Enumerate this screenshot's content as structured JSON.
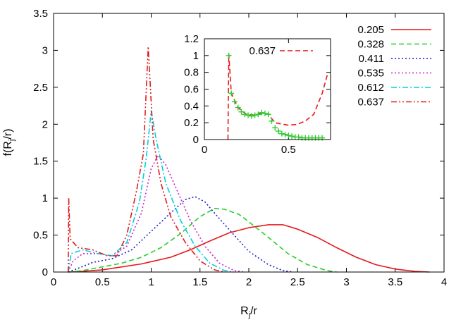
{
  "chart_data": [
    {
      "id": "main",
      "type": "line",
      "title": "",
      "xlabel": {
        "base": "R",
        "sub": "j",
        "rest": "/r"
      },
      "ylabel": {
        "pre": "f(R",
        "sub": "j",
        "rest": "/r)"
      },
      "xlim": [
        0,
        4
      ],
      "ylim": [
        0,
        3.5
      ],
      "xticks": [
        0,
        0.5,
        1,
        1.5,
        2,
        2.5,
        3,
        3.5,
        4
      ],
      "xtick_labels": [
        "0",
        "0.5",
        "1",
        "1.5",
        "2",
        "2.5",
        "3",
        "3.5",
        "4"
      ],
      "yticks": [
        0,
        0.5,
        1,
        1.5,
        2,
        2.5,
        3,
        3.5
      ],
      "ytick_labels": [
        "0",
        "0.5",
        "1",
        "1.5",
        "2",
        "2.5",
        "3",
        "3.5"
      ],
      "grid": false,
      "legend_position": "top-right",
      "series": [
        {
          "name": "0.205",
          "color": "#e41a1c",
          "dash": "solid",
          "points": [
            [
              0.15,
              0
            ],
            [
              0.3,
              0.01
            ],
            [
              0.5,
              0.03
            ],
            [
              0.7,
              0.07
            ],
            [
              0.9,
              0.11
            ],
            [
              1.0,
              0.14
            ],
            [
              1.2,
              0.2
            ],
            [
              1.4,
              0.3
            ],
            [
              1.6,
              0.42
            ],
            [
              1.8,
              0.53
            ],
            [
              2.0,
              0.6
            ],
            [
              2.2,
              0.64
            ],
            [
              2.35,
              0.64
            ],
            [
              2.5,
              0.58
            ],
            [
              2.7,
              0.47
            ],
            [
              2.9,
              0.33
            ],
            [
              3.1,
              0.2
            ],
            [
              3.3,
              0.1
            ],
            [
              3.5,
              0.04
            ],
            [
              3.7,
              0.01
            ],
            [
              3.85,
              0
            ]
          ]
        },
        {
          "name": "0.328",
          "color": "#2ecc2e",
          "dash": "dashed",
          "points": [
            [
              0.15,
              0
            ],
            [
              0.3,
              0.02
            ],
            [
              0.5,
              0.07
            ],
            [
              0.7,
              0.12
            ],
            [
              0.9,
              0.2
            ],
            [
              1.1,
              0.33
            ],
            [
              1.3,
              0.52
            ],
            [
              1.5,
              0.75
            ],
            [
              1.65,
              0.86
            ],
            [
              1.75,
              0.85
            ],
            [
              1.9,
              0.78
            ],
            [
              2.0,
              0.68
            ],
            [
              2.2,
              0.47
            ],
            [
              2.4,
              0.25
            ],
            [
              2.6,
              0.1
            ],
            [
              2.8,
              0.02
            ],
            [
              2.9,
              0
            ]
          ]
        },
        {
          "name": "0.411",
          "color": "#1a1acc",
          "dash": "dotted",
          "points": [
            [
              0.15,
              0
            ],
            [
              0.25,
              0.05
            ],
            [
              0.4,
              0.13
            ],
            [
              0.6,
              0.18
            ],
            [
              0.8,
              0.3
            ],
            [
              1.0,
              0.55
            ],
            [
              1.2,
              0.8
            ],
            [
              1.35,
              0.98
            ],
            [
              1.45,
              1.02
            ],
            [
              1.55,
              0.95
            ],
            [
              1.7,
              0.72
            ],
            [
              1.85,
              0.5
            ],
            [
              2.0,
              0.28
            ],
            [
              2.2,
              0.1
            ],
            [
              2.35,
              0.02
            ],
            [
              2.45,
              0
            ]
          ]
        },
        {
          "name": "0.535",
          "color": "#d020d0",
          "dash": "dotted",
          "points": [
            [
              0.15,
              0
            ],
            [
              0.2,
              0.15
            ],
            [
              0.3,
              0.25
            ],
            [
              0.45,
              0.25
            ],
            [
              0.6,
              0.22
            ],
            [
              0.75,
              0.35
            ],
            [
              0.9,
              0.8
            ],
            [
              1.0,
              1.4
            ],
            [
              1.07,
              1.58
            ],
            [
              1.15,
              1.45
            ],
            [
              1.25,
              1.15
            ],
            [
              1.4,
              0.7
            ],
            [
              1.55,
              0.35
            ],
            [
              1.7,
              0.12
            ],
            [
              1.85,
              0.02
            ],
            [
              1.95,
              0
            ]
          ]
        },
        {
          "name": "0.612",
          "color": "#00d0e0",
          "dash": "dashdot",
          "points": [
            [
              0.15,
              0
            ],
            [
              0.18,
              0.25
            ],
            [
              0.3,
              0.3
            ],
            [
              0.45,
              0.25
            ],
            [
              0.6,
              0.22
            ],
            [
              0.75,
              0.4
            ],
            [
              0.88,
              0.95
            ],
            [
              0.95,
              1.55
            ],
            [
              1.0,
              2.18
            ],
            [
              1.05,
              1.8
            ],
            [
              1.15,
              1.2
            ],
            [
              1.3,
              0.7
            ],
            [
              1.45,
              0.35
            ],
            [
              1.6,
              0.12
            ],
            [
              1.75,
              0.02
            ],
            [
              1.85,
              0
            ]
          ]
        },
        {
          "name": "0.637",
          "color": "#e41a1c",
          "dash": "dashdotdot",
          "points": [
            [
              0.15,
              0
            ],
            [
              0.155,
              1.0
            ],
            [
              0.17,
              0.45
            ],
            [
              0.25,
              0.33
            ],
            [
              0.4,
              0.3
            ],
            [
              0.55,
              0.22
            ],
            [
              0.65,
              0.22
            ],
            [
              0.75,
              0.5
            ],
            [
              0.85,
              1.1
            ],
            [
              0.92,
              1.6
            ],
            [
              0.97,
              3.05
            ],
            [
              1.02,
              1.8
            ],
            [
              1.1,
              1.2
            ],
            [
              1.2,
              0.75
            ],
            [
              1.35,
              0.4
            ],
            [
              1.5,
              0.15
            ],
            [
              1.65,
              0.03
            ],
            [
              1.75,
              0
            ]
          ]
        }
      ]
    },
    {
      "id": "inset",
      "type": "line",
      "title": "",
      "xlim": [
        0,
        0.75
      ],
      "ylim": [
        0,
        1.2
      ],
      "xticks": [
        0,
        0.5
      ],
      "xtick_labels": [
        "0",
        "0.5"
      ],
      "yticks": [
        0,
        0.2,
        0.4,
        0.6,
        0.8,
        1.0,
        1.2
      ],
      "ytick_labels": [
        "0",
        "0.2",
        "0.4",
        "0.6",
        "0.8",
        "1",
        "1.2"
      ],
      "legend_position": "top-right",
      "series": [
        {
          "name": "0.637",
          "color": "#e41a1c",
          "dash": "dashed",
          "points": [
            [
              0.14,
              0
            ],
            [
              0.145,
              1.02
            ],
            [
              0.16,
              0.55
            ],
            [
              0.2,
              0.38
            ],
            [
              0.25,
              0.3
            ],
            [
              0.3,
              0.29
            ],
            [
              0.35,
              0.32
            ],
            [
              0.38,
              0.3
            ],
            [
              0.42,
              0.2
            ],
            [
              0.5,
              0.17
            ],
            [
              0.55,
              0.18
            ],
            [
              0.6,
              0.22
            ],
            [
              0.65,
              0.3
            ],
            [
              0.7,
              0.55
            ],
            [
              0.735,
              0.8
            ]
          ]
        },
        {
          "name": "",
          "color": "#2ecc2e",
          "marker": "plus",
          "points": [
            [
              0.145,
              1.0
            ],
            [
              0.16,
              0.55
            ],
            [
              0.18,
              0.45
            ],
            [
              0.2,
              0.38
            ],
            [
              0.22,
              0.33
            ],
            [
              0.24,
              0.3
            ],
            [
              0.26,
              0.29
            ],
            [
              0.28,
              0.28
            ],
            [
              0.3,
              0.29
            ],
            [
              0.32,
              0.3
            ],
            [
              0.34,
              0.32
            ],
            [
              0.36,
              0.31
            ],
            [
              0.38,
              0.3
            ],
            [
              0.4,
              0.22
            ],
            [
              0.42,
              0.14
            ],
            [
              0.44,
              0.1
            ],
            [
              0.46,
              0.07
            ],
            [
              0.48,
              0.06
            ],
            [
              0.5,
              0.05
            ],
            [
              0.52,
              0.04
            ],
            [
              0.54,
              0.03
            ],
            [
              0.56,
              0.03
            ],
            [
              0.58,
              0.02
            ],
            [
              0.6,
              0.02
            ],
            [
              0.62,
              0.02
            ],
            [
              0.64,
              0.02
            ],
            [
              0.66,
              0.02
            ],
            [
              0.68,
              0.02
            ],
            [
              0.7,
              0.02
            ]
          ]
        }
      ]
    }
  ]
}
